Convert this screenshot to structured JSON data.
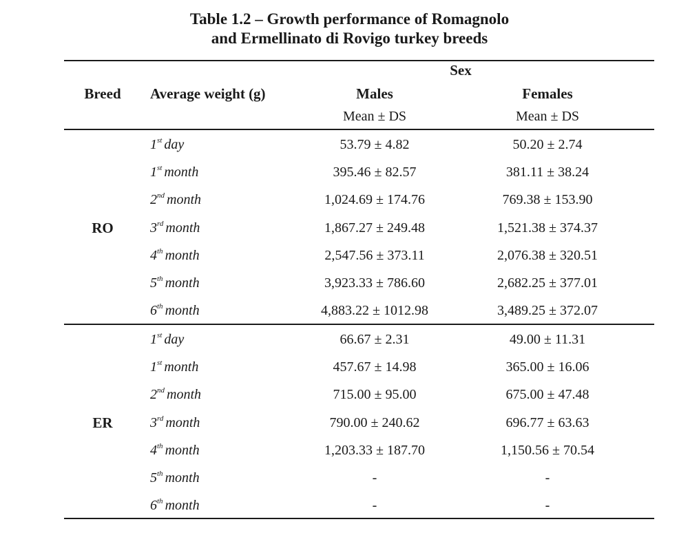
{
  "caption": {
    "line1": "Table 1.2 – Growth performance of Romagnolo",
    "line2": "and Ermellinato di Rovigo turkey breeds"
  },
  "header": {
    "breed": "Breed",
    "avg_weight": "Average weight (g)",
    "sex": "Sex",
    "males": "Males",
    "females": "Females",
    "stat_males": "Mean ± DS",
    "stat_females": "Mean ± DS"
  },
  "groups": [
    {
      "breed": "RO",
      "rows": [
        {
          "num": "1",
          "sup": "st",
          "unit": "day",
          "males": "53.79 ± 4.82",
          "females": "50.20 ± 2.74"
        },
        {
          "num": "1",
          "sup": "st",
          "unit": "month",
          "males": "395.46 ± 82.57",
          "females": "381.11 ± 38.24"
        },
        {
          "num": "2",
          "sup": "nd",
          "unit": "month",
          "males": "1,024.69 ± 174.76",
          "females": "769.38 ± 153.90"
        },
        {
          "num": "3",
          "sup": "rd",
          "unit": "month",
          "males": "1,867.27 ± 249.48",
          "females": "1,521.38 ± 374.37"
        },
        {
          "num": "4",
          "sup": "th",
          "unit": "month",
          "males": "2,547.56 ± 373.11",
          "females": "2,076.38 ± 320.51"
        },
        {
          "num": "5",
          "sup": "th",
          "unit": "month",
          "males": "3,923.33 ± 786.60",
          "females": "2,682.25 ± 377.01"
        },
        {
          "num": "6",
          "sup": "th",
          "unit": "month",
          "males": "4,883.22 ± 1012.98",
          "females": "3,489.25 ± 372.07"
        }
      ]
    },
    {
      "breed": "ER",
      "rows": [
        {
          "num": "1",
          "sup": "st",
          "unit": "day",
          "males": "66.67 ± 2.31",
          "females": "49.00 ± 11.31"
        },
        {
          "num": "1",
          "sup": "st",
          "unit": "month",
          "males": "457.67 ± 14.98",
          "females": "365.00 ± 16.06"
        },
        {
          "num": "2",
          "sup": "nd",
          "unit": "month",
          "males": "715.00 ± 95.00",
          "females": "675.00 ± 47.48"
        },
        {
          "num": "3",
          "sup": "rd",
          "unit": "month",
          "males": "790.00 ± 240.62",
          "females": "696.77 ± 63.63"
        },
        {
          "num": "4",
          "sup": "th",
          "unit": "month",
          "males": "1,203.33 ± 187.70",
          "females": "1,150.56 ± 70.54"
        },
        {
          "num": "5",
          "sup": "th",
          "unit": "month",
          "males": "-",
          "females": "-"
        },
        {
          "num": "6",
          "sup": "th",
          "unit": "month",
          "males": "-",
          "females": "-"
        }
      ]
    }
  ]
}
